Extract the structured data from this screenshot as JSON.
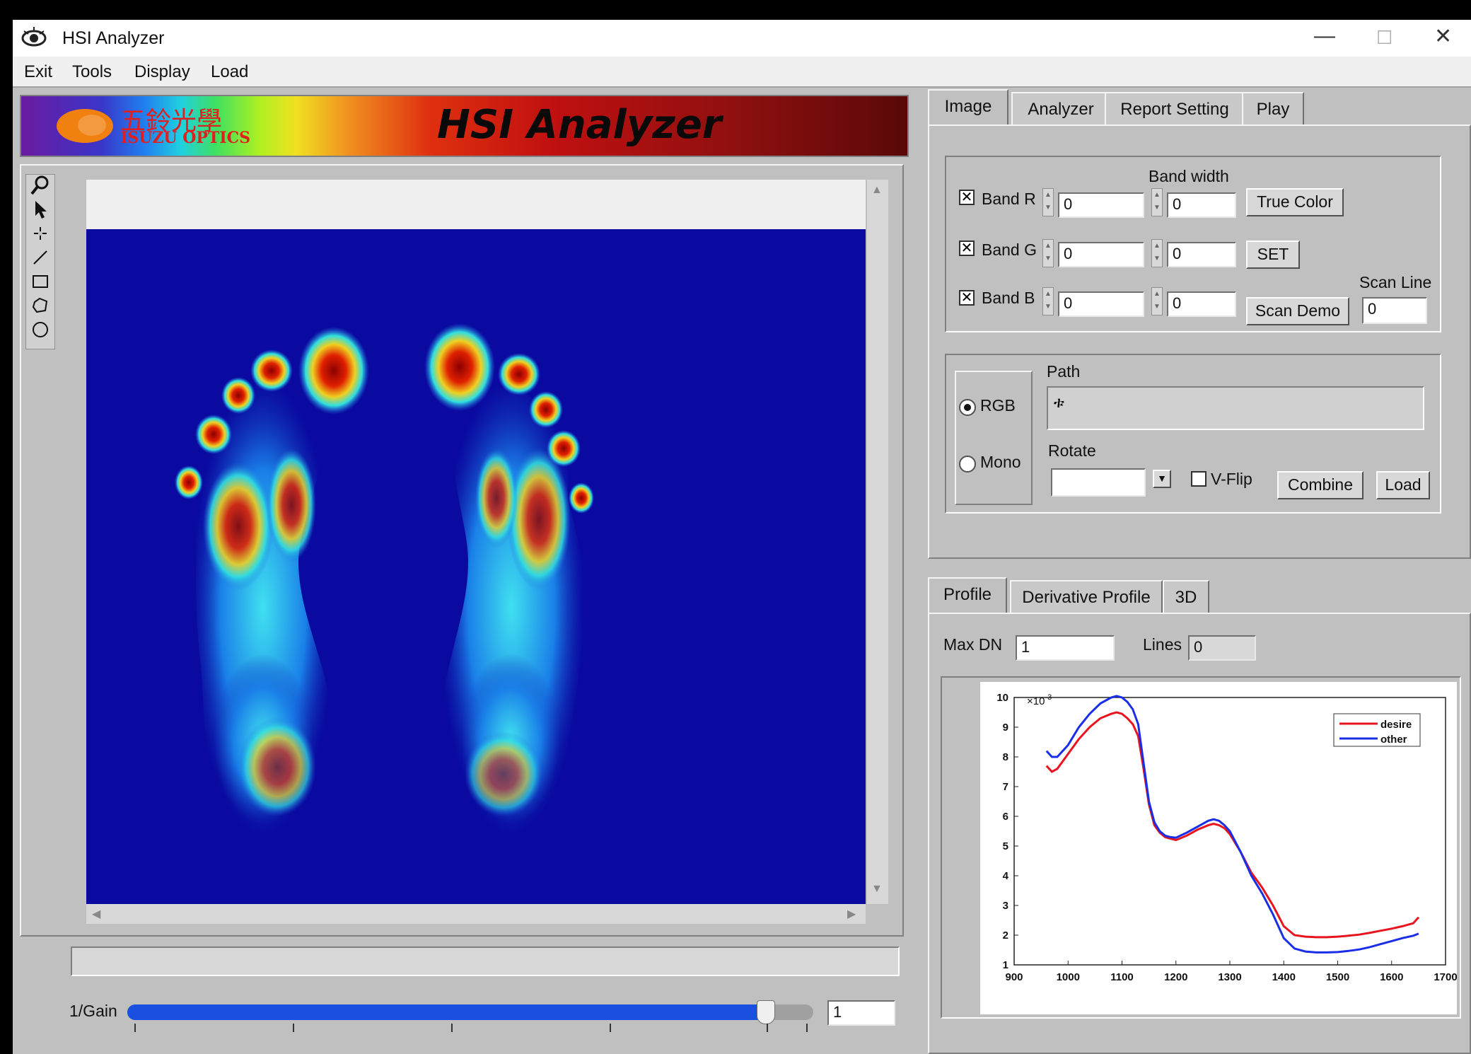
{
  "app": {
    "title": "HSI Analyzer",
    "icon": "eye-icon",
    "window_controls": {
      "minimize": "—",
      "maximize": "☐",
      "close": "✕"
    }
  },
  "menu": [
    "Exit",
    "Tools",
    "Display",
    "Load"
  ],
  "banner": {
    "title": "HSI Analyzer",
    "logo_cn": "五鈴光學",
    "logo_en": "ISUZU OPTICS"
  },
  "tools": [
    "zoom-icon",
    "pointer-icon",
    "crosshair-icon",
    "line-icon",
    "rectangle-icon",
    "polygon-icon",
    "circle-icon"
  ],
  "gain": {
    "label": "1/Gain",
    "value": "1",
    "slider_fraction": 0.93
  },
  "top_tabs": [
    "Image",
    "Analyzer",
    "Report Setting",
    "Play"
  ],
  "bands": {
    "band_width_label": "Band width",
    "rows": [
      {
        "label": "Band R",
        "checked": true,
        "value": "0",
        "width": "0"
      },
      {
        "label": "Band G",
        "checked": true,
        "value": "0",
        "width": "0"
      },
      {
        "label": "Band B",
        "checked": true,
        "value": "0",
        "width": "0"
      }
    ],
    "true_color": "True Color",
    "set": "SET",
    "scan_demo": "Scan Demo",
    "scan_line_label": "Scan Line",
    "scan_line_value": "0"
  },
  "mode": {
    "rgb": "RGB",
    "mono": "Mono",
    "selected": "RGB",
    "path_label": "Path",
    "path_value": "ቱ",
    "rotate_label": "Rotate",
    "rotate_value": "",
    "vflip_label": "V-Flip",
    "combine": "Combine",
    "load": "Load"
  },
  "bottom_tabs": [
    "Profile",
    "Derivative Profile",
    "3D"
  ],
  "profile": {
    "max_dn_label": "Max DN",
    "max_dn_value": "1",
    "lines_label": "Lines",
    "lines_value": "0"
  },
  "colors": {
    "desire": "#e8141e",
    "other": "#1a2ee8",
    "image_bg": "#0a0aa0"
  },
  "chart_data": {
    "type": "line",
    "xlim": [
      900,
      1700
    ],
    "ylim": [
      1,
      10
    ],
    "x_ticks": [
      "900",
      "1000",
      "1100",
      "1200",
      "1300",
      "1400",
      "1500",
      "1600",
      "1700"
    ],
    "y_ticks": [
      "1",
      "2",
      "3",
      "4",
      "5",
      "6",
      "7",
      "8",
      "9",
      "10"
    ],
    "y_multiplier": "×10",
    "y_multiplier_exp": "-3",
    "legend_position": "top-right",
    "x": [
      960,
      970,
      980,
      1000,
      1020,
      1040,
      1060,
      1080,
      1090,
      1100,
      1110,
      1120,
      1130,
      1140,
      1150,
      1160,
      1170,
      1180,
      1190,
      1200,
      1220,
      1240,
      1260,
      1270,
      1280,
      1290,
      1300,
      1320,
      1340,
      1360,
      1380,
      1400,
      1420,
      1440,
      1460,
      1480,
      1500,
      1520,
      1540,
      1560,
      1580,
      1600,
      1620,
      1640,
      1650
    ],
    "series": [
      {
        "name": "desire",
        "values": [
          7.7,
          7.5,
          7.6,
          8.1,
          8.6,
          9.0,
          9.3,
          9.45,
          9.5,
          9.45,
          9.3,
          9.1,
          8.7,
          7.6,
          6.4,
          5.7,
          5.45,
          5.3,
          5.25,
          5.2,
          5.35,
          5.55,
          5.7,
          5.75,
          5.7,
          5.6,
          5.4,
          4.8,
          4.1,
          3.6,
          3.0,
          2.3,
          2.0,
          1.95,
          1.93,
          1.93,
          1.95,
          1.98,
          2.02,
          2.08,
          2.15,
          2.22,
          2.3,
          2.4,
          2.6
        ]
      },
      {
        "name": "other",
        "values": [
          8.2,
          8.0,
          8.0,
          8.4,
          9.0,
          9.45,
          9.8,
          10.0,
          10.05,
          10.0,
          9.85,
          9.6,
          9.1,
          7.8,
          6.5,
          5.8,
          5.5,
          5.35,
          5.3,
          5.28,
          5.45,
          5.65,
          5.85,
          5.9,
          5.85,
          5.7,
          5.5,
          4.8,
          4.0,
          3.4,
          2.7,
          1.9,
          1.55,
          1.45,
          1.42,
          1.42,
          1.43,
          1.47,
          1.52,
          1.6,
          1.7,
          1.8,
          1.9,
          1.98,
          2.05
        ]
      }
    ]
  }
}
